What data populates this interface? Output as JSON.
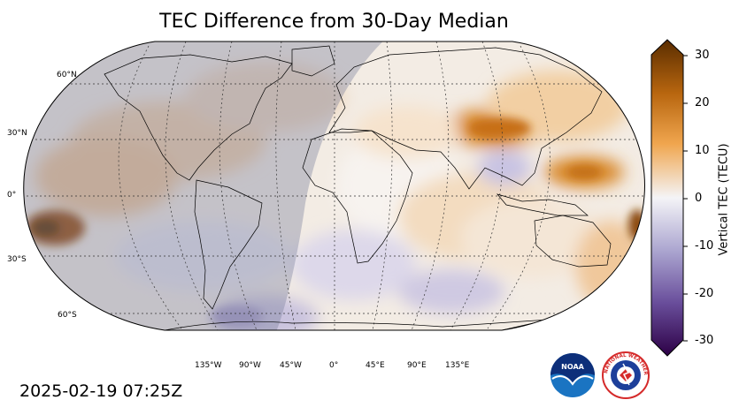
{
  "title": "TEC Difference from 30-Day Median",
  "timestamp": "2025-02-19 07:25Z",
  "map": {
    "projection": "Robinson",
    "lat_labels": [
      "60°N",
      "30°N",
      "0°",
      "30°S",
      "60°S"
    ],
    "lon_labels": [
      "135°W",
      "90°W",
      "45°W",
      "0°",
      "45°E",
      "90°E",
      "135°E"
    ],
    "night_side": "western hemisphere (Americas, Pacific)",
    "features": [
      {
        "name": "positive-anomaly-east-asia",
        "value": 25
      },
      {
        "name": "positive-anomaly-west-pacific",
        "value": 22
      },
      {
        "name": "positive-anomaly-south-pacific",
        "value": 27
      },
      {
        "name": "positive-anomaly-indian-ocean",
        "value": 12
      },
      {
        "name": "negative-anomaly-south-atlantic",
        "value": -12
      },
      {
        "name": "negative-anomaly-southeast-asia",
        "value": -10
      }
    ]
  },
  "colorbar": {
    "label": "Vertical TEC (TECU)",
    "ticks": [
      "30",
      "20",
      "10",
      "0",
      "-10",
      "-20",
      "-30"
    ],
    "range": [
      -30,
      30
    ],
    "colors": {
      "max": "#5a2d00",
      "pos": "#e5922a",
      "zero": "#f4f4f7",
      "neg": "#8a7fb6",
      "min": "#2d0046"
    }
  },
  "logos": {
    "noaa": "NOAA",
    "nws": "NATIONAL WEATHER SERVICE"
  }
}
